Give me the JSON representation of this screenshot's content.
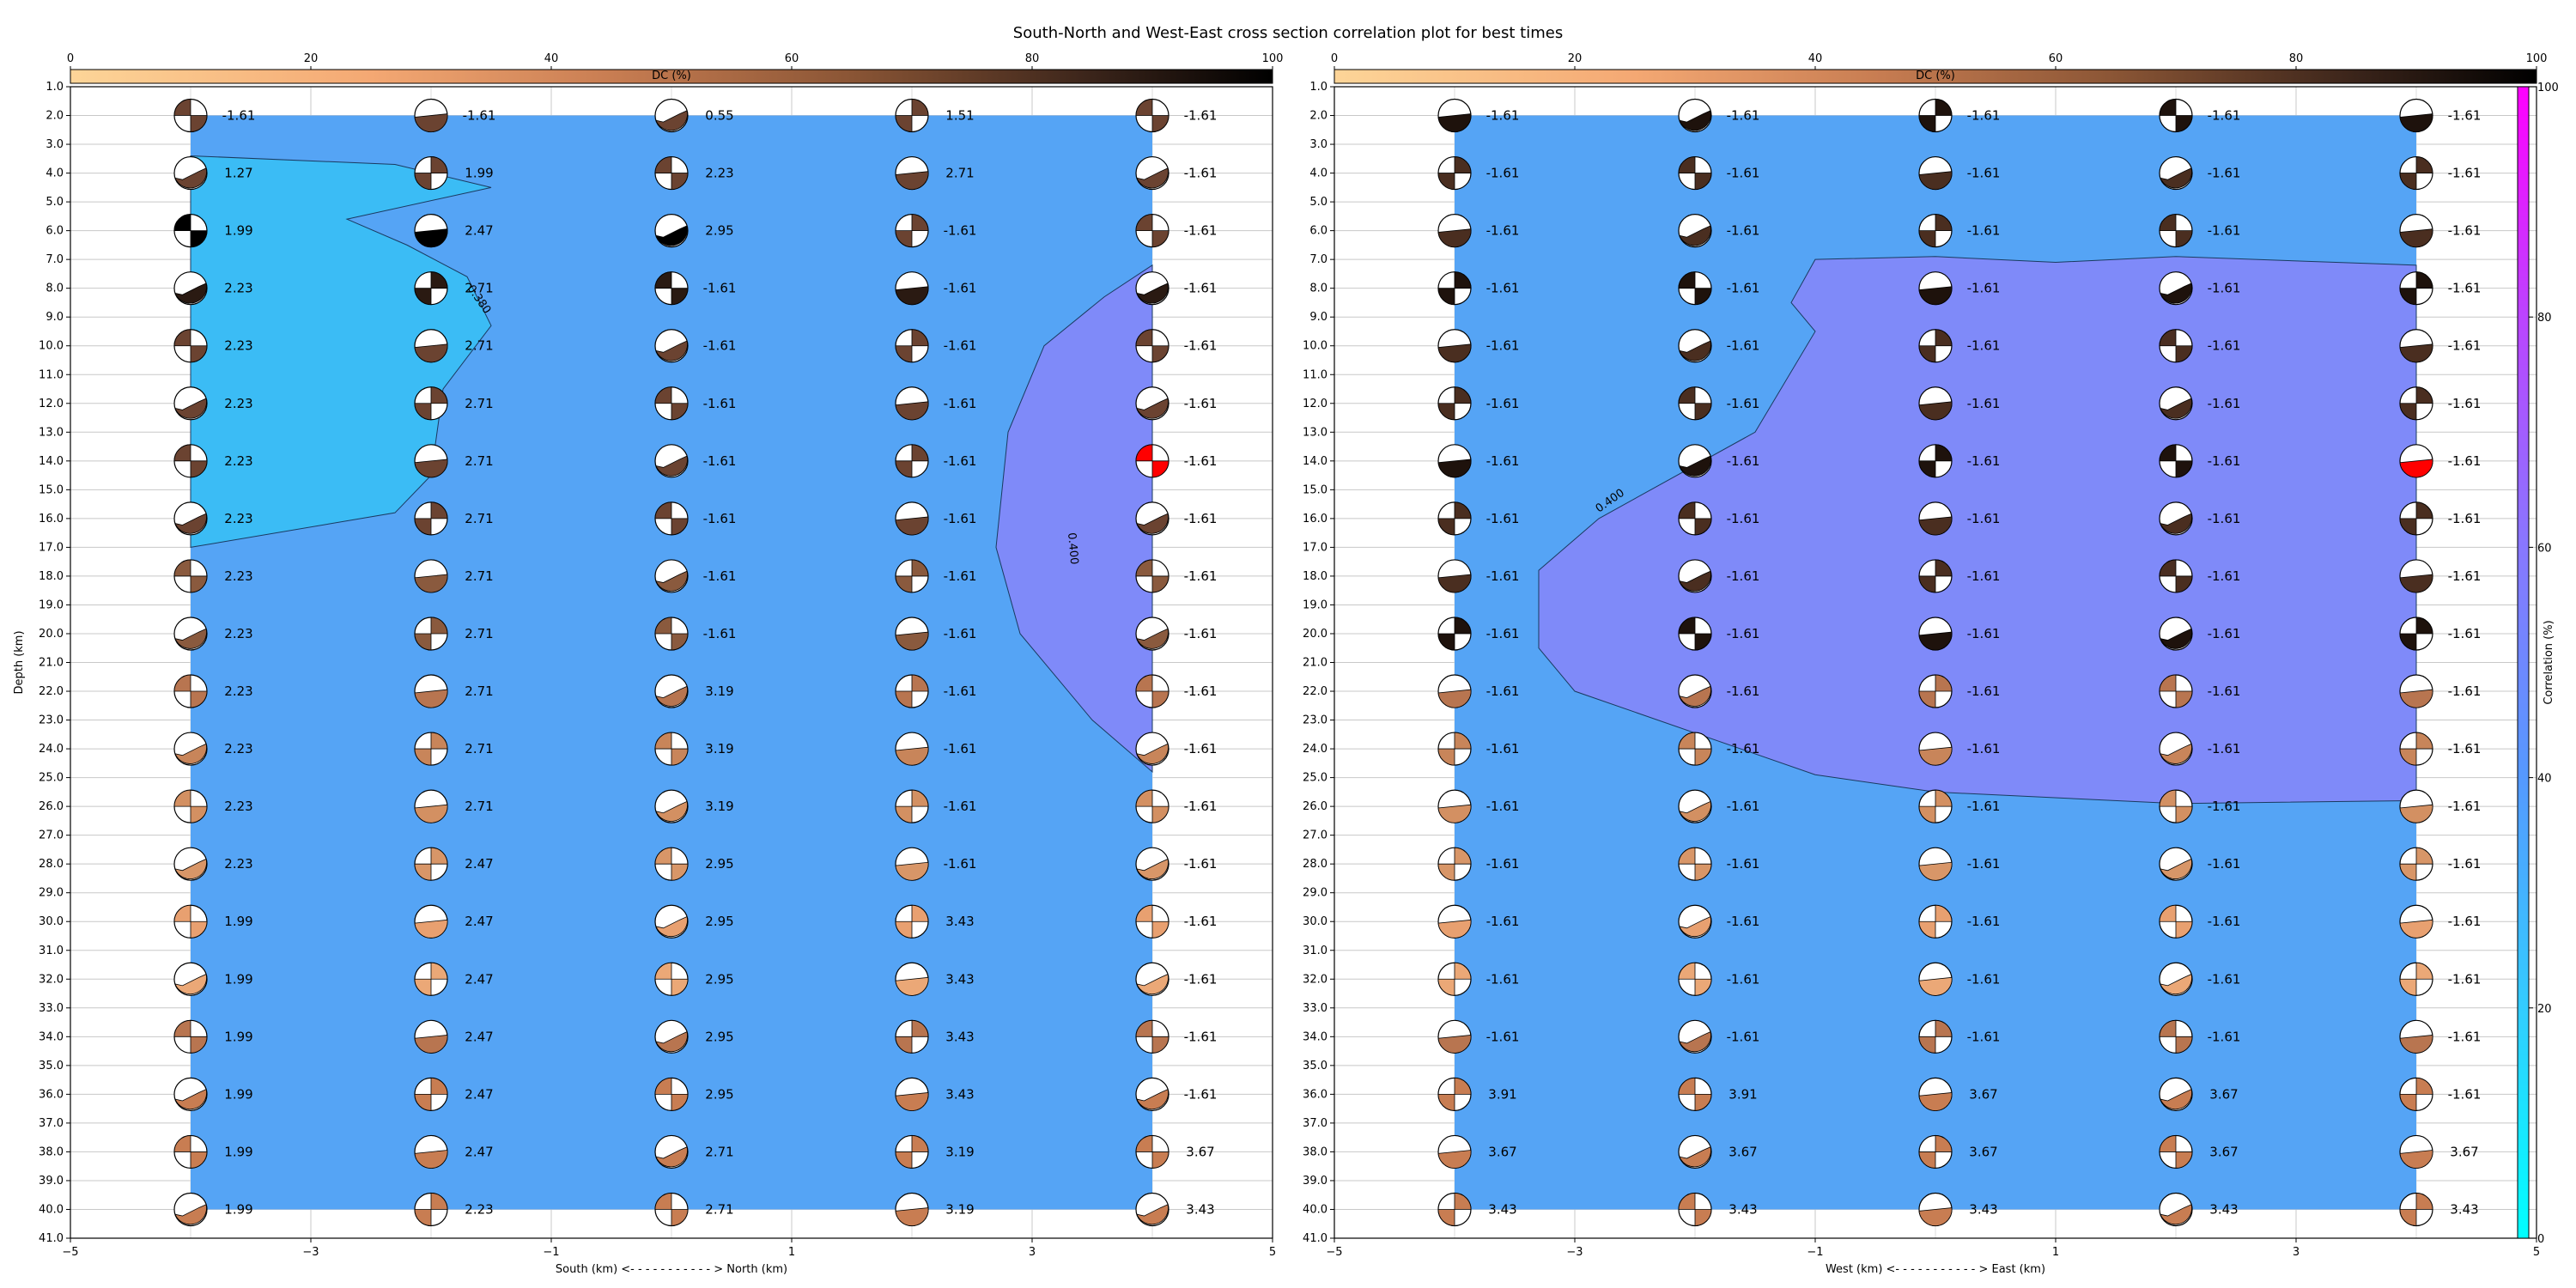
{
  "title": "South-North and West-East cross section correlation plot for best times",
  "colorbar_dc": {
    "label": "DC (%)",
    "ticks": [
      "0",
      "20",
      "40",
      "60",
      "80",
      "100"
    ]
  },
  "colorbar_corr": {
    "label": "Correlation (%)",
    "ticks": [
      "0",
      "20",
      "40",
      "60",
      "80",
      "100"
    ]
  },
  "chart_data": [
    {
      "type": "heatmap",
      "xlabel": "South (km) <- - - - - - - - - - - > North (km)",
      "ylabel": "Depth (km)",
      "xlim": [
        -5,
        5
      ],
      "ylim": [
        41,
        1
      ],
      "x_ticks": [
        "−5",
        "−3",
        "−1",
        "1",
        "3",
        "5"
      ],
      "y_ticks": [
        "1.0",
        "2.0",
        "3.0",
        "4.0",
        "5.0",
        "6.0",
        "7.0",
        "8.0",
        "9.0",
        "10.0",
        "11.0",
        "12.0",
        "13.0",
        "14.0",
        "15.0",
        "16.0",
        "17.0",
        "18.0",
        "19.0",
        "20.0",
        "21.0",
        "22.0",
        "23.0",
        "24.0",
        "25.0",
        "26.0",
        "27.0",
        "28.0",
        "29.0",
        "30.0",
        "31.0",
        "32.0",
        "33.0",
        "34.0",
        "35.0",
        "36.0",
        "37.0",
        "38.0",
        "39.0",
        "40.0",
        "41.0"
      ],
      "grid": true,
      "station_x": [
        -4,
        -2,
        0,
        2,
        4
      ],
      "depths": [
        2,
        4,
        6,
        8,
        10,
        12,
        14,
        16,
        18,
        20,
        22,
        24,
        26,
        28,
        30,
        32,
        34,
        36,
        38,
        40
      ],
      "contour_labels": [
        "0.380",
        "0.400"
      ],
      "value_labels": [
        [
          "-1.61",
          "-1.61",
          "0.55",
          "1.51",
          "-1.61"
        ],
        [
          "1.27",
          "1.99",
          "2.23",
          "2.71",
          "-1.61"
        ],
        [
          "1.99",
          "2.47",
          "2.95",
          "-1.61",
          "-1.61"
        ],
        [
          "2.23",
          "2.71",
          "-1.61",
          "-1.61",
          "-1.61"
        ],
        [
          "2.23",
          "2.71",
          "-1.61",
          "-1.61",
          "-1.61"
        ],
        [
          "2.23",
          "2.71",
          "-1.61",
          "-1.61",
          "-1.61"
        ],
        [
          "2.23",
          "2.71",
          "-1.61",
          "-1.61",
          "-1.61"
        ],
        [
          "2.23",
          "2.71",
          "-1.61",
          "-1.61",
          "-1.61"
        ],
        [
          "2.23",
          "2.71",
          "-1.61",
          "-1.61",
          "-1.61"
        ],
        [
          "2.23",
          "2.71",
          "-1.61",
          "-1.61",
          "-1.61"
        ],
        [
          "2.23",
          "2.71",
          "3.19",
          "-1.61",
          "-1.61"
        ],
        [
          "2.23",
          "2.71",
          "3.19",
          "-1.61",
          "-1.61"
        ],
        [
          "2.23",
          "2.71",
          "3.19",
          "-1.61",
          "-1.61"
        ],
        [
          "2.23",
          "2.47",
          "2.95",
          "-1.61",
          "-1.61"
        ],
        [
          "1.99",
          "2.47",
          "2.95",
          "3.43",
          "-1.61"
        ],
        [
          "1.99",
          "2.47",
          "2.95",
          "3.43",
          "-1.61"
        ],
        [
          "1.99",
          "2.47",
          "2.95",
          "3.43",
          "-1.61"
        ],
        [
          "1.99",
          "2.47",
          "2.95",
          "3.43",
          "-1.61"
        ],
        [
          "1.99",
          "2.47",
          "2.71",
          "3.19",
          "3.67"
        ],
        [
          "1.99",
          "2.23",
          "2.71",
          "3.19",
          "3.43"
        ]
      ],
      "best_solution": {
        "x": 4,
        "depth": 14
      }
    },
    {
      "type": "heatmap",
      "xlabel": "West (km) <- - - - - - - - - - - > East (km)",
      "ylabel": "",
      "xlim": [
        -5,
        5
      ],
      "ylim": [
        41,
        1
      ],
      "x_ticks": [
        "−5",
        "−3",
        "−1",
        "1",
        "3",
        "5"
      ],
      "y_ticks": [
        "1.0",
        "2.0",
        "3.0",
        "4.0",
        "5.0",
        "6.0",
        "7.0",
        "8.0",
        "9.0",
        "10.0",
        "11.0",
        "12.0",
        "13.0",
        "14.0",
        "15.0",
        "16.0",
        "17.0",
        "18.0",
        "19.0",
        "20.0",
        "21.0",
        "22.0",
        "23.0",
        "24.0",
        "25.0",
        "26.0",
        "27.0",
        "28.0",
        "29.0",
        "30.0",
        "31.0",
        "32.0",
        "33.0",
        "34.0",
        "35.0",
        "36.0",
        "37.0",
        "38.0",
        "39.0",
        "40.0",
        "41.0"
      ],
      "grid": true,
      "station_x": [
        -4,
        -2,
        0,
        2,
        4
      ],
      "depths": [
        2,
        4,
        6,
        8,
        10,
        12,
        14,
        16,
        18,
        20,
        22,
        24,
        26,
        28,
        30,
        32,
        34,
        36,
        38,
        40
      ],
      "contour_labels": [
        "0.400"
      ],
      "value_labels": [
        [
          "-1.61",
          "-1.61",
          "-1.61",
          "-1.61",
          "-1.61"
        ],
        [
          "-1.61",
          "-1.61",
          "-1.61",
          "-1.61",
          "-1.61"
        ],
        [
          "-1.61",
          "-1.61",
          "-1.61",
          "-1.61",
          "-1.61"
        ],
        [
          "-1.61",
          "-1.61",
          "-1.61",
          "-1.61",
          "-1.61"
        ],
        [
          "-1.61",
          "-1.61",
          "-1.61",
          "-1.61",
          "-1.61"
        ],
        [
          "-1.61",
          "-1.61",
          "-1.61",
          "-1.61",
          "-1.61"
        ],
        [
          "-1.61",
          "-1.61",
          "-1.61",
          "-1.61",
          "-1.61"
        ],
        [
          "-1.61",
          "-1.61",
          "-1.61",
          "-1.61",
          "-1.61"
        ],
        [
          "-1.61",
          "-1.61",
          "-1.61",
          "-1.61",
          "-1.61"
        ],
        [
          "-1.61",
          "-1.61",
          "-1.61",
          "-1.61",
          "-1.61"
        ],
        [
          "-1.61",
          "-1.61",
          "-1.61",
          "-1.61",
          "-1.61"
        ],
        [
          "-1.61",
          "-1.61",
          "-1.61",
          "-1.61",
          "-1.61"
        ],
        [
          "-1.61",
          "-1.61",
          "-1.61",
          "-1.61",
          "-1.61"
        ],
        [
          "-1.61",
          "-1.61",
          "-1.61",
          "-1.61",
          "-1.61"
        ],
        [
          "-1.61",
          "-1.61",
          "-1.61",
          "-1.61",
          "-1.61"
        ],
        [
          "-1.61",
          "-1.61",
          "-1.61",
          "-1.61",
          "-1.61"
        ],
        [
          "-1.61",
          "-1.61",
          "-1.61",
          "-1.61",
          "-1.61"
        ],
        [
          "3.91",
          "3.91",
          "3.67",
          "3.67",
          "-1.61"
        ],
        [
          "3.67",
          "3.67",
          "3.67",
          "3.67",
          "3.67"
        ],
        [
          "3.43",
          "3.43",
          "3.43",
          "3.43",
          "3.43"
        ]
      ],
      "best_solution": {
        "x": 4,
        "depth": 14
      }
    }
  ]
}
